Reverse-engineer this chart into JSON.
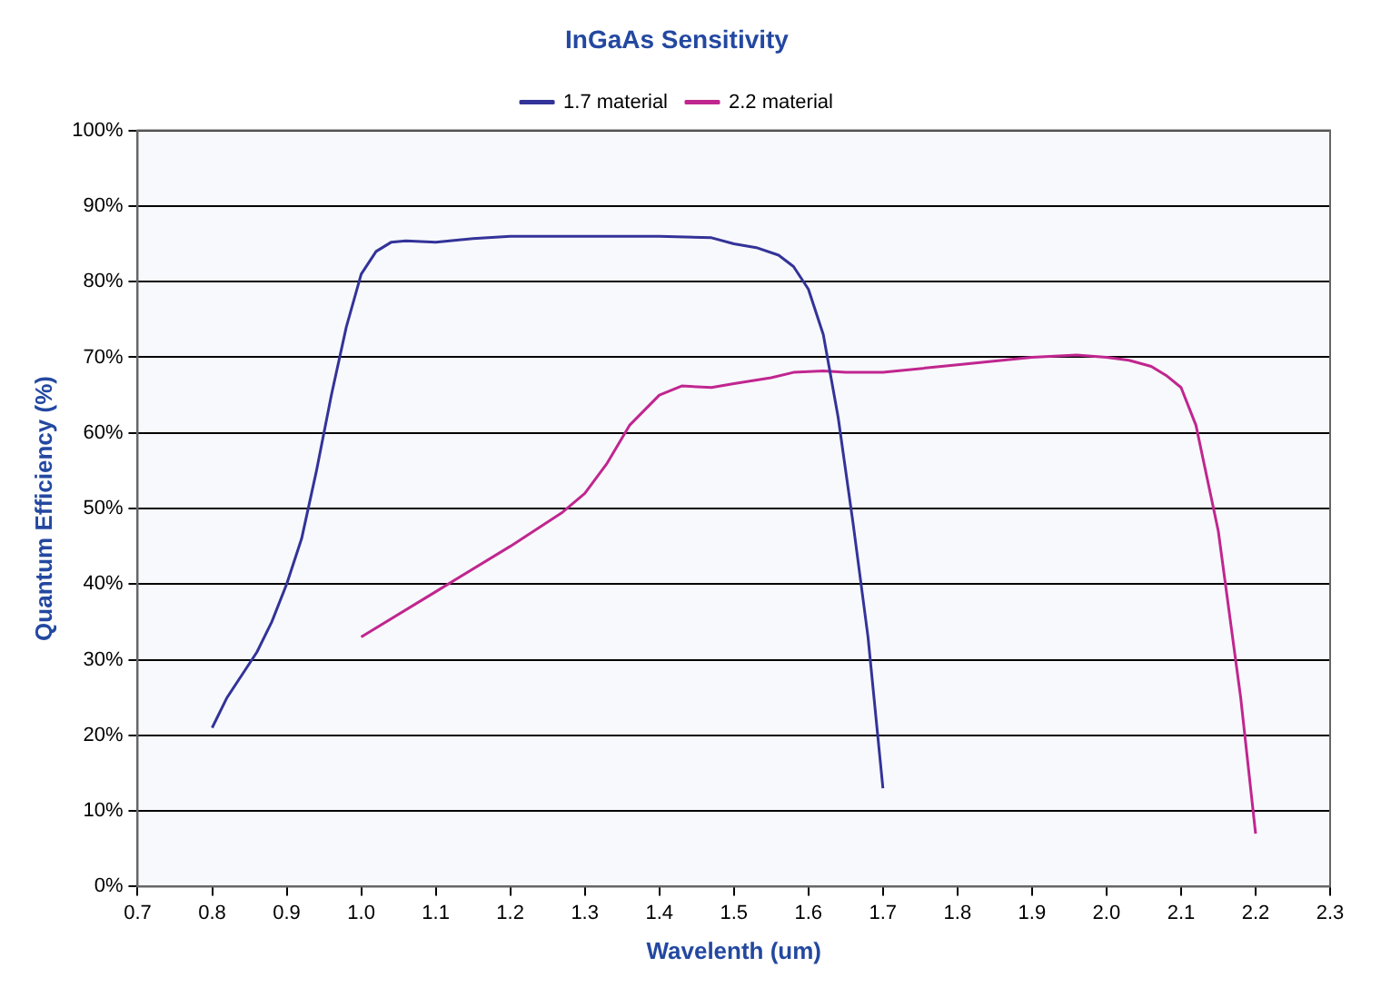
{
  "chart_data": {
    "type": "line",
    "title": "InGaAs Sensitivity",
    "xlabel": "Wavelenth (um)",
    "ylabel": "Quantum Efficiency (%)",
    "xlim": [
      0.7,
      2.3
    ],
    "xticks": [
      0.7,
      0.8,
      0.9,
      {
        "value": 1.0,
        "label": "1.0"
      },
      1.1,
      1.2,
      1.3,
      1.4,
      1.5,
      1.6,
      1.7,
      1.8,
      1.9,
      {
        "value": 2.0,
        "label": "2.0"
      },
      2.1,
      2.2,
      2.3
    ],
    "ylim": [
      0,
      100
    ],
    "yticks": [
      {
        "value": 0,
        "label": "0%"
      },
      {
        "value": 10,
        "label": "10%"
      },
      {
        "value": 20,
        "label": "20%"
      },
      {
        "value": 30,
        "label": "30%"
      },
      {
        "value": 40,
        "label": "40%"
      },
      {
        "value": 50,
        "label": "50%"
      },
      {
        "value": 60,
        "label": "60%"
      },
      {
        "value": 70,
        "label": "70%"
      },
      {
        "value": 80,
        "label": "80%"
      },
      {
        "value": 90,
        "label": "90%"
      },
      {
        "value": 100,
        "label": "100%"
      }
    ],
    "grid": "y",
    "legend": "top",
    "marker": "none",
    "line_style": "solid",
    "series": [
      {
        "name": "1.7 material",
        "color": "#333399",
        "x": [
          0.8,
          0.82,
          0.84,
          0.86,
          0.88,
          0.9,
          0.92,
          0.94,
          0.96,
          0.98,
          1.0,
          1.02,
          1.04,
          1.06,
          1.1,
          1.15,
          1.2,
          1.3,
          1.4,
          1.47,
          1.5,
          1.53,
          1.56,
          1.58,
          1.6,
          1.62,
          1.64,
          1.66,
          1.68,
          1.7
        ],
        "values": [
          21,
          25,
          28,
          31,
          35,
          40,
          46,
          55,
          65,
          74,
          81,
          84,
          85.2,
          85.4,
          85.2,
          85.7,
          86,
          86,
          86,
          85.8,
          85,
          84.5,
          83.5,
          82,
          79,
          73,
          62,
          48,
          33,
          13
        ]
      },
      {
        "name": "2.2 material",
        "color": "#c0268f",
        "x": [
          1.0,
          1.1,
          1.2,
          1.27,
          1.3,
          1.33,
          1.36,
          1.4,
          1.43,
          1.47,
          1.5,
          1.55,
          1.58,
          1.62,
          1.65,
          1.7,
          1.8,
          1.9,
          1.96,
          2.0,
          2.03,
          2.06,
          2.08,
          2.1,
          2.12,
          2.15,
          2.18,
          2.2
        ],
        "values": [
          33,
          39,
          45,
          49.5,
          52,
          56,
          61,
          65,
          66.2,
          66,
          66.5,
          67.3,
          68,
          68.2,
          68,
          68,
          69,
          70,
          70.3,
          70,
          69.6,
          68.8,
          67.6,
          66,
          61,
          47,
          25,
          7
        ]
      }
    ]
  }
}
